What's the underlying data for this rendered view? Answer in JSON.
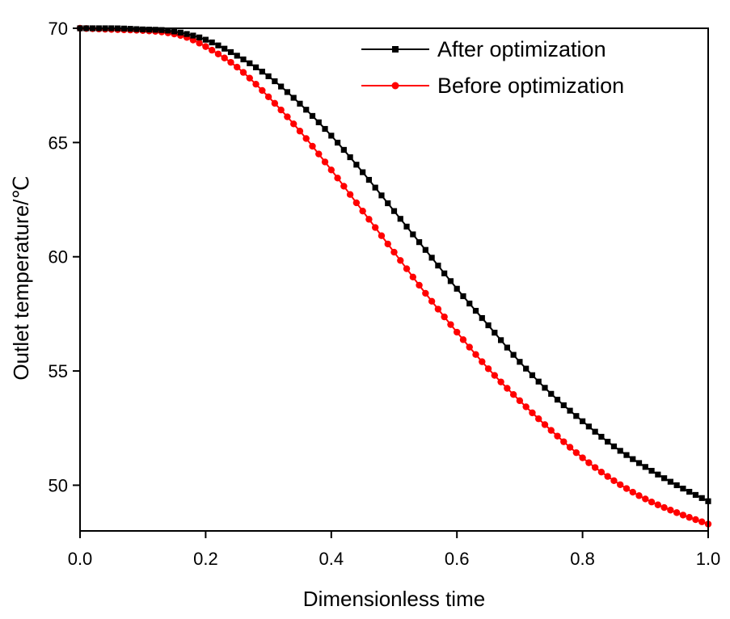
{
  "chart_data": {
    "type": "line",
    "title": "",
    "xlabel": "Dimensionless time",
    "ylabel": "Outlet temperature/℃",
    "xlim": [
      0.0,
      1.0
    ],
    "ylim": [
      48.0,
      70.0
    ],
    "x_ticks": [
      "0.0",
      "0.2",
      "0.4",
      "0.6",
      "0.8",
      "1.0"
    ],
    "y_ticks": [
      "50",
      "55",
      "60",
      "65",
      "70"
    ],
    "grid": false,
    "legend_position": "top-right",
    "series": [
      {
        "name": "After optimization",
        "color": "#000000",
        "marker": "square",
        "x": [
          0.0,
          0.05,
          0.1,
          0.14,
          0.17,
          0.2,
          0.25,
          0.3,
          0.35,
          0.4,
          0.45,
          0.5,
          0.55,
          0.6,
          0.65,
          0.7,
          0.75,
          0.8,
          0.85,
          0.9,
          0.95,
          1.0
        ],
        "y": [
          70.0,
          70.0,
          69.95,
          69.9,
          69.75,
          69.5,
          68.8,
          67.9,
          66.7,
          65.3,
          63.7,
          62.0,
          60.3,
          58.6,
          57.0,
          55.4,
          54.0,
          52.8,
          51.7,
          50.8,
          50.0,
          49.3
        ]
      },
      {
        "name": "Before optimization",
        "color": "#ff0000",
        "marker": "circle",
        "x": [
          0.0,
          0.05,
          0.1,
          0.14,
          0.17,
          0.2,
          0.25,
          0.3,
          0.35,
          0.4,
          0.45,
          0.5,
          0.55,
          0.6,
          0.65,
          0.7,
          0.75,
          0.8,
          0.85,
          0.9,
          0.95,
          1.0
        ],
        "y": [
          70.0,
          69.95,
          69.9,
          69.8,
          69.6,
          69.2,
          68.3,
          67.0,
          65.5,
          63.8,
          62.0,
          60.2,
          58.4,
          56.7,
          55.1,
          53.7,
          52.4,
          51.2,
          50.2,
          49.4,
          48.8,
          48.3
        ]
      }
    ]
  }
}
